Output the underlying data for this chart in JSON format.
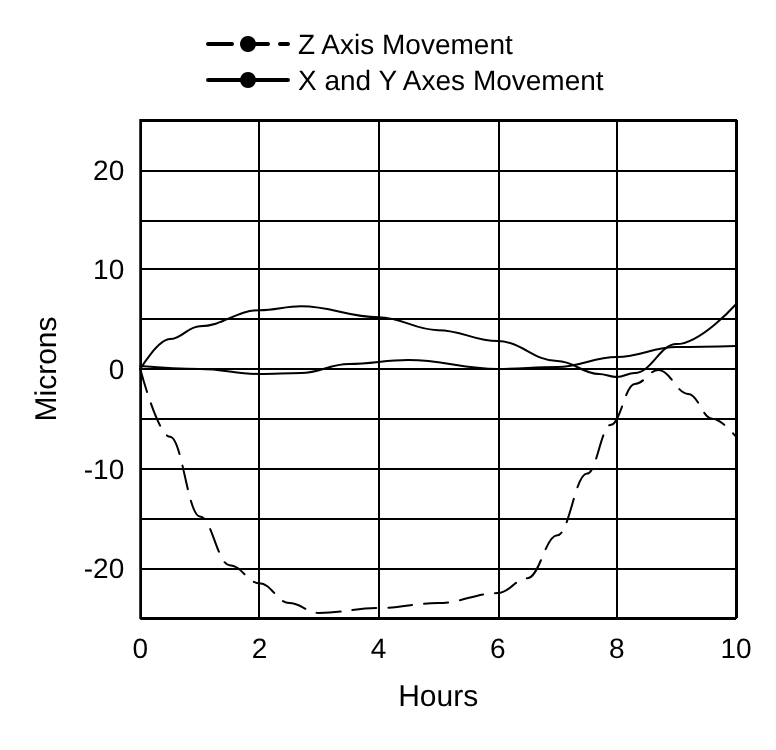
{
  "chart_data": {
    "type": "line",
    "xlabel": "Hours",
    "ylabel": "Microns",
    "xlim": [
      0,
      10
    ],
    "xticks": [
      0,
      2,
      4,
      6,
      8,
      10
    ],
    "ylim": [
      -25,
      25
    ],
    "yticks": [
      {
        "value": -25,
        "label": null
      },
      -20,
      {
        "value": -15,
        "label": null
      },
      -10,
      {
        "value": -5,
        "label": null
      },
      0,
      {
        "value": 5,
        "label": null
      },
      10,
      {
        "value": 15,
        "label": null
      },
      20,
      {
        "value": 25,
        "label": null
      }
    ],
    "grid": true,
    "legend": "top",
    "series": [
      {
        "name": "Z Axis Movement",
        "color": "#000000",
        "line_style": "dashed",
        "x": [
          0,
          0.5,
          1,
          1.5,
          2,
          2.5,
          3,
          4,
          5,
          6,
          6.5,
          7,
          7.5,
          7.9,
          8.3,
          8.7,
          9.2,
          9.6,
          10
        ],
        "values": [
          0,
          -6.8,
          -14.8,
          -19.7,
          -21.5,
          -23.5,
          -24.5,
          -24,
          -23.5,
          -22.5,
          -21,
          -16.7,
          -10.5,
          -5.6,
          -1.5,
          -0.1,
          -2.5,
          -5,
          -6.8
        ]
      },
      {
        "name": "X and Y Axes Movement",
        "color": "#000000",
        "line_style": "solid",
        "x": [
          0,
          0.5,
          1,
          2,
          2.7,
          4,
          5,
          6,
          7,
          7.7,
          8,
          8.3,
          9,
          10
        ],
        "values": [
          0,
          3,
          4.3,
          5.9,
          6.3,
          5.2,
          3.9,
          2.8,
          0.8,
          -0.5,
          -0.8,
          -0.4,
          2.5,
          6.5
        ]
      },
      {
        "color": "#000000",
        "line_style": "solid",
        "x": [
          0,
          1,
          2,
          2.7,
          3.5,
          4.5,
          6,
          7,
          8,
          9,
          10
        ],
        "values": [
          0.3,
          0,
          -0.5,
          -0.4,
          0.5,
          0.9,
          0,
          0.2,
          1.2,
          2.2,
          2.3
        ]
      }
    ]
  }
}
